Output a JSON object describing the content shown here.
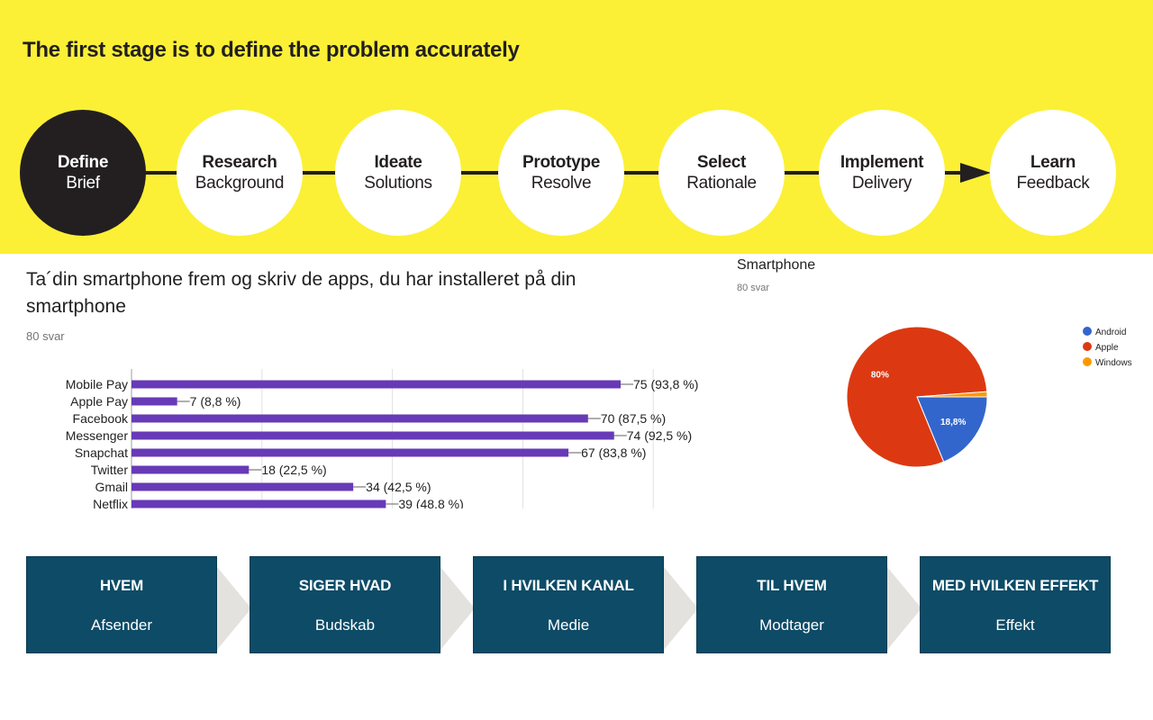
{
  "process": {
    "title": "The first stage is to define the problem accurately",
    "steps": [
      {
        "title": "Define",
        "subtitle": "Brief"
      },
      {
        "title": "Research",
        "subtitle": "Background"
      },
      {
        "title": "Ideate",
        "subtitle": "Solutions"
      },
      {
        "title": "Prototype",
        "subtitle": "Resolve"
      },
      {
        "title": "Select",
        "subtitle": "Rationale"
      },
      {
        "title": "Implement",
        "subtitle": "Delivery"
      },
      {
        "title": "Learn",
        "subtitle": "Feedback"
      }
    ],
    "colors": {
      "background": "#fbf035",
      "dark": "#231f20"
    }
  },
  "survey": {
    "question": "Ta´din smartphone frem og skriv de apps, du har installeret på din smartphone",
    "responses": "80 svar"
  },
  "pie": {
    "question": "Smartphone",
    "responses": "80 svar"
  },
  "chart_data": [
    {
      "type": "bar",
      "orientation": "horizontal",
      "title": "Ta´din smartphone frem og skriv de apps, du har installeret på din smartphone",
      "categories": [
        "Mobile Pay",
        "Apple Pay",
        "Facebook",
        "Messenger",
        "Snapchat",
        "Twitter",
        "Gmail",
        "Netflix"
      ],
      "values": [
        75,
        7,
        70,
        74,
        67,
        18,
        34,
        39
      ],
      "labels": [
        "75 (93,8 %)",
        "7 (8,8 %)",
        "70 (87,5 %)",
        "74 (92,5 %)",
        "67 (83,8 %)",
        "18 (22,5 %)",
        "34 (42,5 %)",
        "39 (48,8 %)"
      ],
      "xlim": [
        0,
        80
      ],
      "grid": true,
      "color": "#673ab7"
    },
    {
      "type": "pie",
      "title": "Smartphone",
      "categories": [
        "Android",
        "Apple",
        "Windows"
      ],
      "values": [
        18.8,
        80,
        1.2
      ],
      "slice_labels": [
        "18,8%",
        "80%",
        ""
      ],
      "colors": [
        "#3366cc",
        "#dc3912",
        "#ff9900"
      ],
      "legend": "right"
    }
  ],
  "comm_model": {
    "boxes": [
      {
        "head": "HVEM",
        "sub": "Afsender"
      },
      {
        "head": "SIGER HVAD",
        "sub": "Budskab"
      },
      {
        "head": "I HVILKEN KANAL",
        "sub": "Medie"
      },
      {
        "head": "TIL HVEM",
        "sub": "Modtager"
      },
      {
        "head": "MED HVILKEN EFFEKT",
        "sub": "Effekt"
      }
    ],
    "colors": {
      "box": "#0d4b67",
      "chevron": "#e4e2de"
    }
  }
}
